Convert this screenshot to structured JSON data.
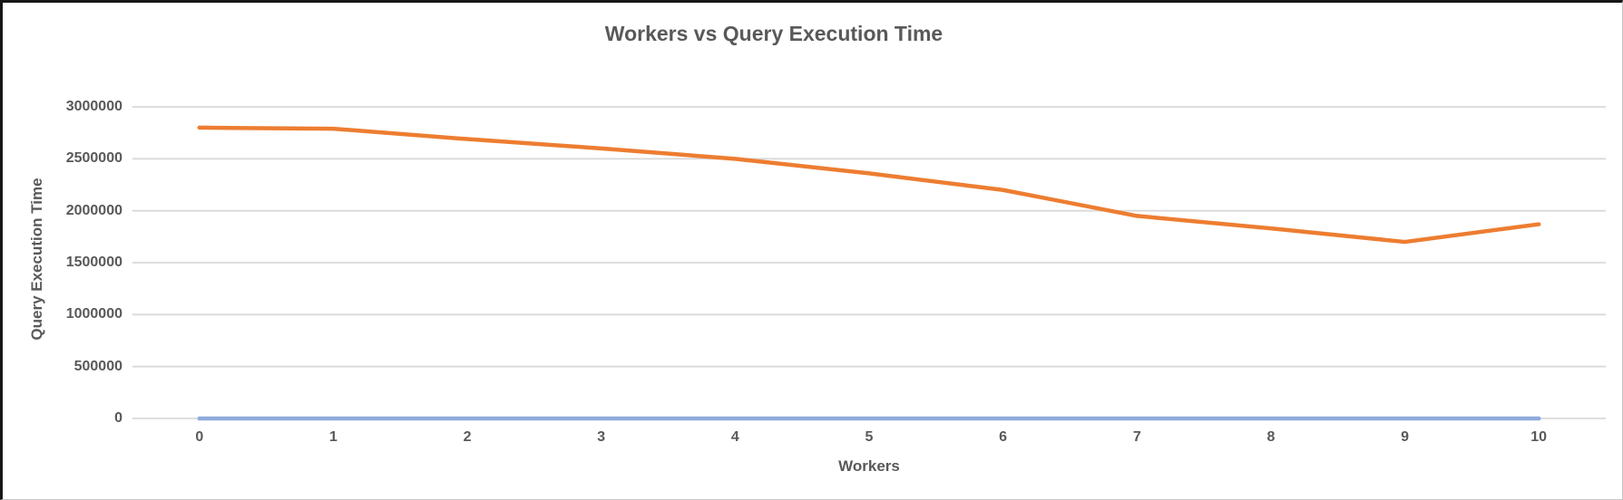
{
  "chart_data": {
    "type": "line",
    "title": "Workers vs Query Execution Time",
    "xlabel": "Workers",
    "ylabel": "Query Execution Time",
    "x": [
      0,
      1,
      2,
      3,
      4,
      5,
      6,
      7,
      8,
      9,
      10
    ],
    "series": [
      {
        "name": "orange",
        "color": "#ED7D31",
        "values": [
          2800000,
          2790000,
          2690000,
          2600000,
          2500000,
          2360000,
          2200000,
          1950000,
          1830000,
          1700000,
          1870000
        ]
      },
      {
        "name": "blue",
        "color": "#8FAADC",
        "values": [
          0,
          0,
          0,
          0,
          0,
          0,
          0,
          0,
          0,
          0,
          0
        ]
      }
    ],
    "ylim": [
      0,
      3000000
    ],
    "yticks": [
      0,
      500000,
      1000000,
      1500000,
      2000000,
      2500000,
      3000000
    ],
    "grid": true,
    "legend": "none"
  },
  "colors": {
    "gridline": "#D9D9D9",
    "text": "#595959",
    "background": "#FFFFFF",
    "series_orange": "#ED7D31",
    "series_blue": "#8FAADC"
  }
}
